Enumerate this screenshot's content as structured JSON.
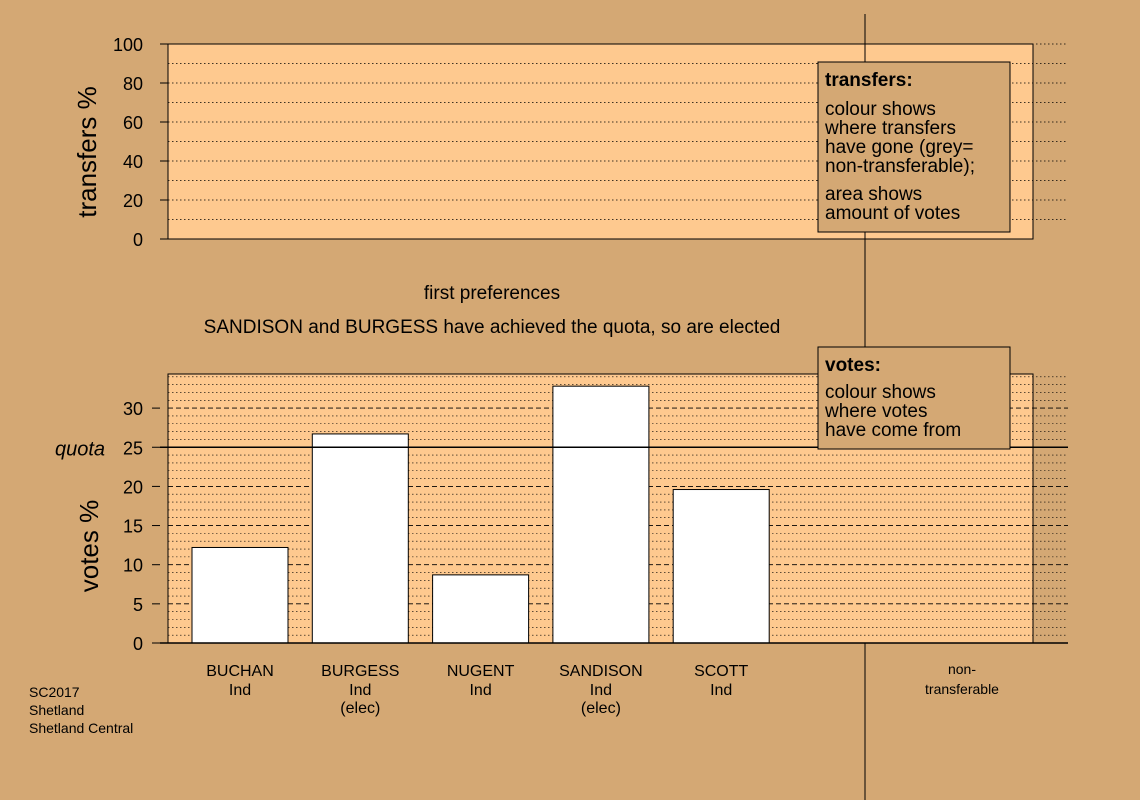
{
  "chart_data": [
    {
      "type": "bar",
      "ylabel": "transfers %",
      "ylim": [
        0,
        100
      ],
      "yticks": [
        0,
        20,
        40,
        60,
        80,
        100
      ],
      "values": [],
      "legend": {
        "title": "transfers:",
        "lines": [
          "colour shows",
          "where transfers",
          "have gone (grey=",
          "non-transferable);",
          "area shows",
          "amount of votes"
        ]
      }
    },
    {
      "type": "bar",
      "ylabel": "votes %",
      "ylim": [
        0,
        35
      ],
      "yticks": [
        0,
        5,
        10,
        15,
        20,
        25,
        30
      ],
      "quota": 25,
      "quota_label": "quota",
      "categories": [
        "BUCHAN",
        "BURGESS",
        "NUGENT",
        "SANDISON",
        "SCOTT"
      ],
      "parties": [
        "Ind",
        "Ind",
        "Ind",
        "Ind",
        "Ind"
      ],
      "status": [
        "",
        "(elec)",
        "",
        "(elec)",
        ""
      ],
      "values": [
        12.2,
        26.7,
        8.7,
        32.8,
        19.6
      ],
      "bar_color": "#ffffff",
      "legend": {
        "title": "votes:",
        "lines": [
          "colour shows",
          "where votes",
          "have come from"
        ]
      }
    }
  ],
  "stage_title": "first preferences",
  "stage_note": "SANDISON and BURGESS have achieved the quota, so are elected",
  "nontransferable_label": [
    "non-",
    "transferable"
  ],
  "footer": [
    "SC2017",
    "Shetland",
    "Shetland Central"
  ],
  "colors": {
    "background": "#d4a874",
    "panel": "#fec98f",
    "legend_bg": "#d4a874",
    "bar": "#ffffff"
  }
}
